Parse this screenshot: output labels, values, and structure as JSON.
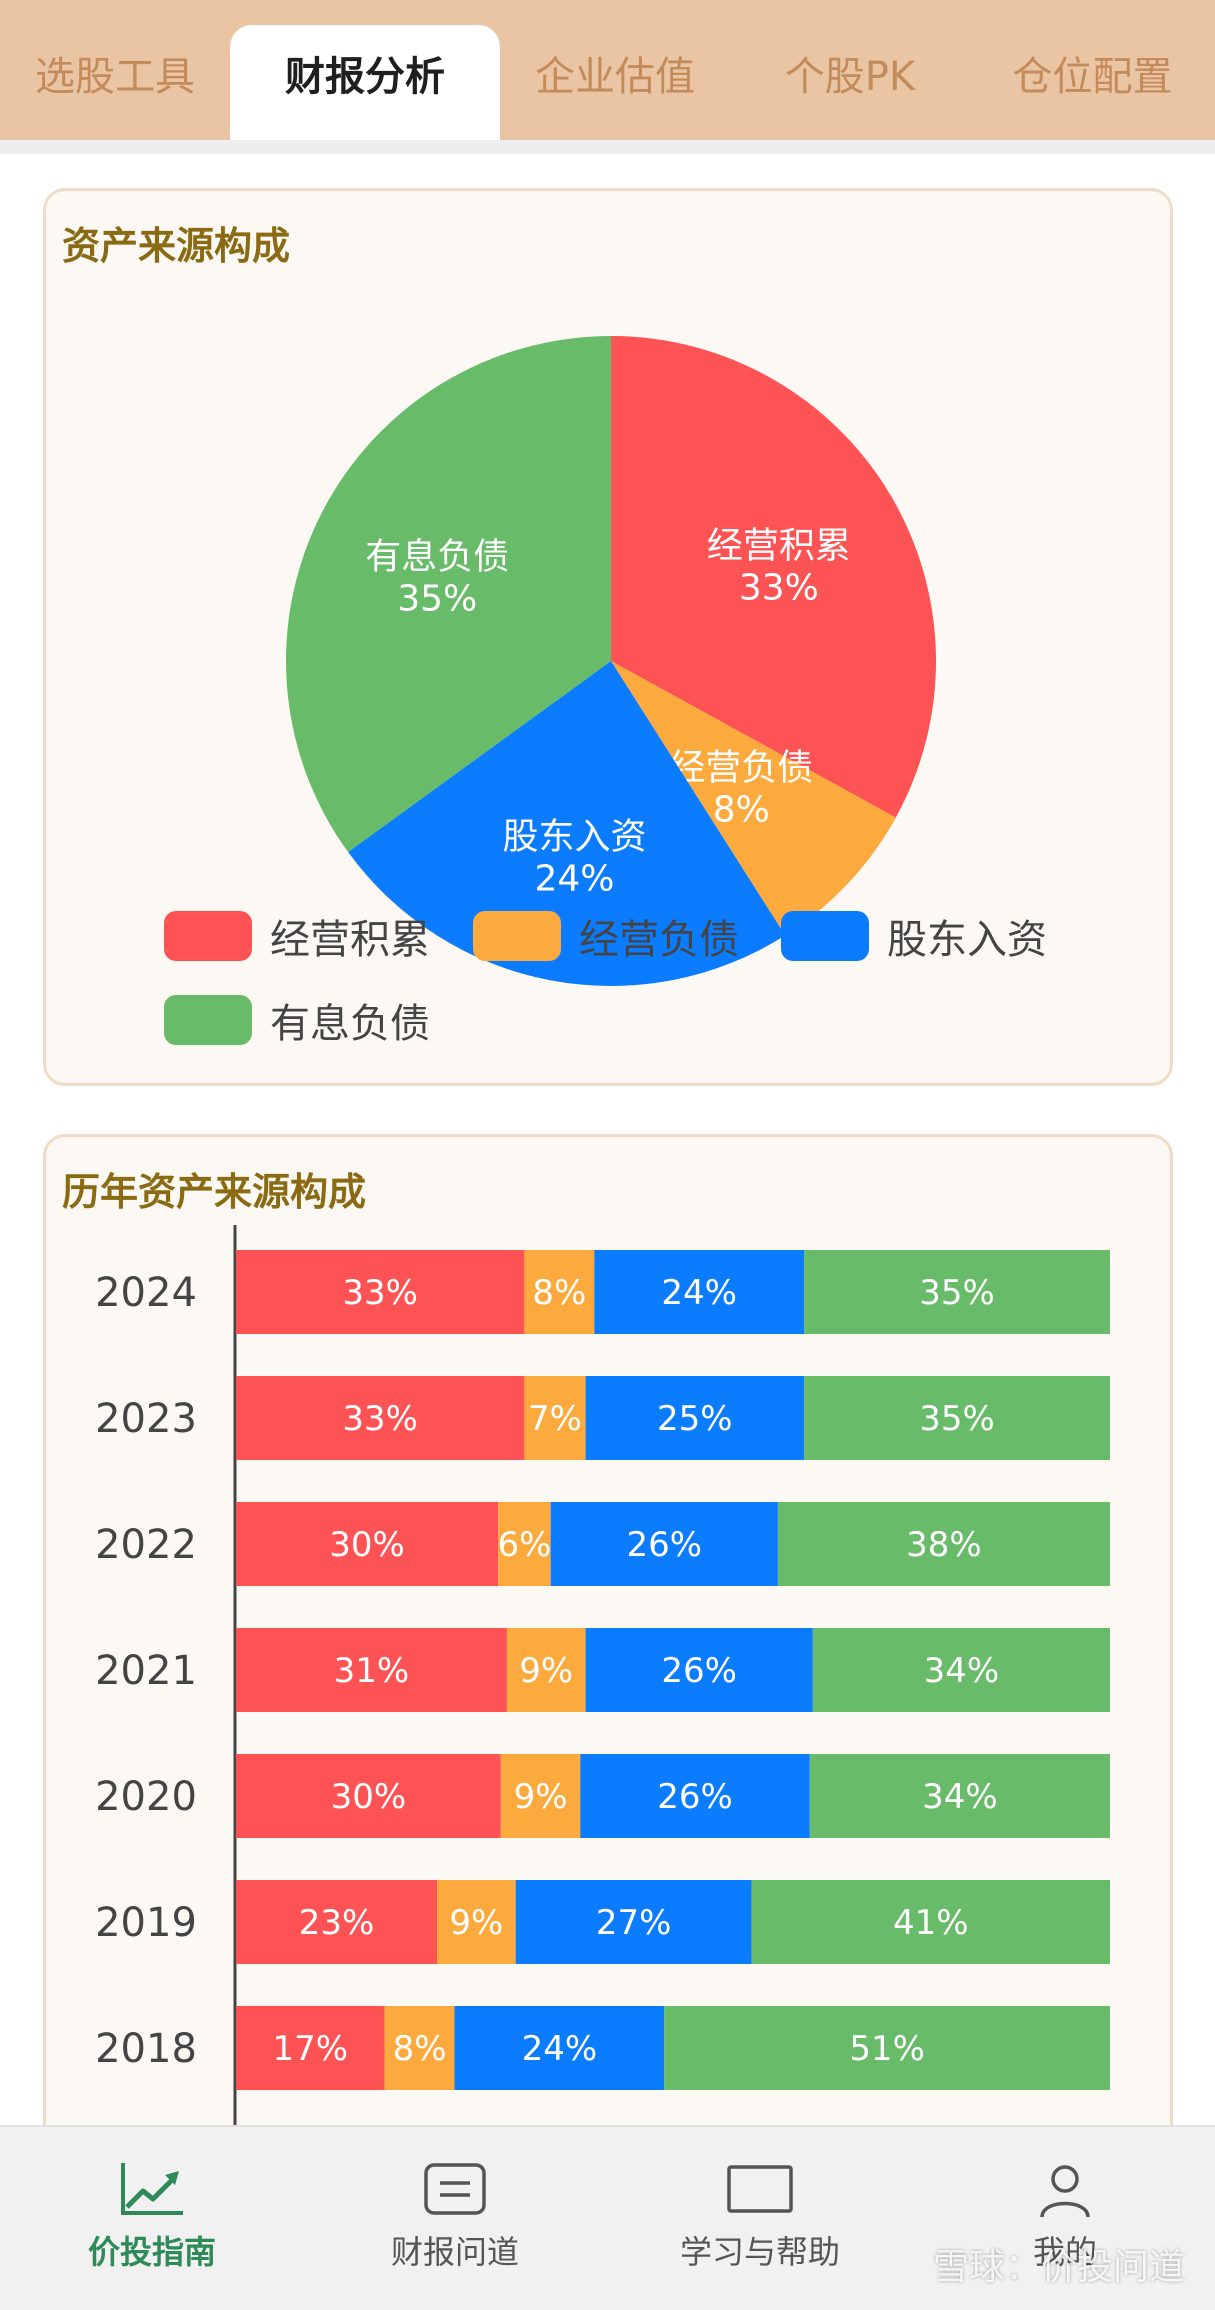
{
  "tabs": [
    {
      "label": "选股工具",
      "active": false
    },
    {
      "label": "财报分析",
      "active": true
    },
    {
      "label": "企业估值",
      "active": false
    },
    {
      "label": "个股PK",
      "active": false
    },
    {
      "label": "仓位配置",
      "active": false
    }
  ],
  "colors": {
    "red": "#fd5355",
    "orange": "#fcaa3e",
    "blue": "#0b7cfd",
    "green": "#68bb68"
  },
  "pie_card": {
    "title": "资产来源构成"
  },
  "bars_card": {
    "title": "历年资产来源构成"
  },
  "chart_data": [
    {
      "type": "pie",
      "title": "资产来源构成",
      "slices": [
        {
          "name": "经营积累",
          "value": 33,
          "label": "33%"
        },
        {
          "name": "经营负债",
          "value": 8,
          "label": "8%"
        },
        {
          "name": "股东入资",
          "value": 24,
          "label": "24%"
        },
        {
          "name": "有息负债",
          "value": 35,
          "label": "35%"
        }
      ],
      "legend": [
        "经营积累",
        "经营负债",
        "股东入资",
        "有息负债"
      ],
      "legend_position": "bottom"
    },
    {
      "type": "bar",
      "orientation": "horizontal",
      "stacked": true,
      "title": "历年资产来源构成",
      "categories": [
        "2024",
        "2023",
        "2022",
        "2021",
        "2020",
        "2019",
        "2018"
      ],
      "series": [
        {
          "name": "经营积累",
          "values": [
            33,
            33,
            30,
            31,
            30,
            23,
            17
          ]
        },
        {
          "name": "经营负债",
          "values": [
            8,
            7,
            6,
            9,
            9,
            9,
            8
          ]
        },
        {
          "name": "股东入资",
          "values": [
            24,
            25,
            26,
            26,
            26,
            27,
            24
          ]
        },
        {
          "name": "有息负债",
          "values": [
            35,
            35,
            38,
            34,
            34,
            41,
            51
          ]
        }
      ]
    }
  ],
  "bottom_nav": [
    {
      "label": "价投指南",
      "icon": "chart-trend-icon",
      "active": true
    },
    {
      "label": "财报问道",
      "icon": "document-icon",
      "active": false
    },
    {
      "label": "学习与帮助",
      "icon": "book-icon",
      "active": false
    },
    {
      "label": "我的",
      "icon": "user-icon",
      "active": false
    }
  ],
  "watermark": "雪球：价投问道"
}
